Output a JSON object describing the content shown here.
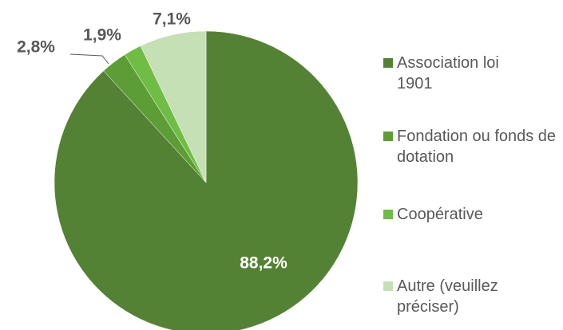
{
  "chart_data": {
    "type": "pie",
    "categories": [
      "Association loi 1901",
      "Fondation ou fonds de dotation",
      "Coopérative",
      "Autre (veuillez préciser)"
    ],
    "values": [
      88.2,
      2.8,
      1.9,
      7.1
    ],
    "value_labels": [
      "88,2%",
      "2,8%",
      "1,9%",
      "7,1%"
    ],
    "colors": [
      "#548235",
      "#5c9d35",
      "#6fbd45",
      "#c5e0b4"
    ],
    "legend": "right"
  }
}
